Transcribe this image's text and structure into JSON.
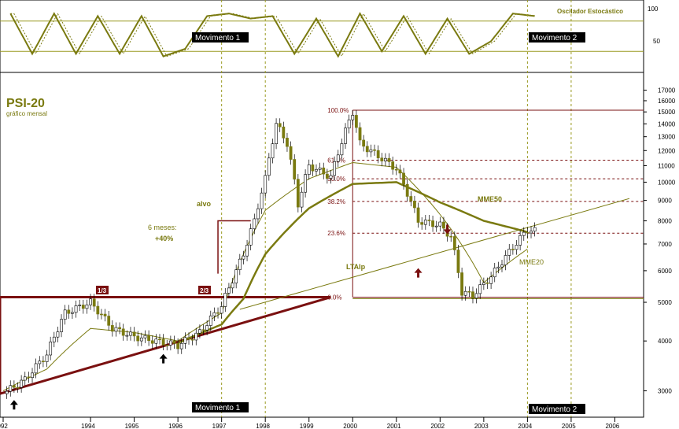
{
  "chart": {
    "title": "PSI-20",
    "subtitle": "gráfico mensal",
    "oscillator_label": "Oscilador Estocástico",
    "oscillator_ticks": [
      100,
      50
    ],
    "movements": [
      "Movimento 1",
      "Movimento 2"
    ],
    "fib_levels": [
      {
        "label": "100.0%",
        "value": 15150
      },
      {
        "label": "61.8%",
        "value": 11350
      },
      {
        "label": "50.0%",
        "value": 10200
      },
      {
        "label": "38.2%",
        "value": 8950
      },
      {
        "label": "23.6%",
        "value": 7450
      },
      {
        "label": "0.0%",
        "value": 5150
      }
    ],
    "annotations": {
      "alvo": "alvo",
      "six_months": "6 meses:",
      "gain": "+40%",
      "third1": "1/3",
      "third2": "2/3",
      "ltalp": "LTAlp",
      "mme50": "MME50",
      "mme20": "MME20"
    },
    "colors": {
      "price": "#7a7a10",
      "pattern": "#7a1010",
      "axis": "#000000",
      "up_arrow": "#000000",
      "red_arrow": "#7a1010"
    }
  },
  "chart_data": {
    "type": "line",
    "yscale": "log",
    "xlim": [
      "1992-01",
      "2006-07"
    ],
    "ylim": [
      2600,
      18500
    ],
    "x_ticks": [
      "1992",
      "1994",
      "1995",
      "1996",
      "1997",
      "1998",
      "1999",
      "2000",
      "2001",
      "2002",
      "2003",
      "2004",
      "2005",
      "2006"
    ],
    "y_ticks": [
      3000,
      4000,
      5000,
      6000,
      7000,
      8000,
      9000,
      10000,
      11000,
      12000,
      13000,
      14000,
      15000,
      16000,
      17000
    ],
    "series": [
      {
        "name": "PSI-20",
        "x": [
          "1992-01",
          "1992-07",
          "1993-01",
          "1993-06",
          "1994-01",
          "1994-07",
          "1995-01",
          "1995-07",
          "1996-01",
          "1996-07",
          "1997-01",
          "1997-04",
          "1997-07",
          "1997-10",
          "1998-01",
          "1998-04",
          "1998-07",
          "1998-10",
          "1999-01",
          "1999-07",
          "2000-01",
          "2000-03",
          "2000-07",
          "2001-01",
          "2001-07",
          "2002-01",
          "2002-04",
          "2002-07",
          "2002-10",
          "2003-03",
          "2003-07",
          "2004-01",
          "2004-03"
        ],
        "values": [
          2950,
          3200,
          3700,
          4700,
          5000,
          4300,
          4100,
          4000,
          3900,
          4200,
          4900,
          5700,
          6600,
          8000,
          10200,
          14000,
          12500,
          8800,
          11000,
          10300,
          15000,
          12500,
          11800,
          10800,
          8000,
          7800,
          7300,
          5300,
          5200,
          5800,
          6500,
          7600,
          7550
        ]
      },
      {
        "name": "MME20",
        "x": [
          "1992-01",
          "1993-01",
          "1994-01",
          "1995-01",
          "1996-01",
          "1997-01",
          "1998-01",
          "1999-01",
          "2000-01",
          "2001-01",
          "2002-01",
          "2003-01",
          "2004-01"
        ],
        "values": [
          3000,
          3400,
          4300,
          4200,
          4000,
          4700,
          8500,
          10200,
          11200,
          10900,
          8300,
          5600,
          6800
        ]
      },
      {
        "name": "MME50",
        "x": [
          "1996-01",
          "1997-01",
          "1997-07",
          "1998-01",
          "1999-01",
          "2000-01",
          "2001-01",
          "2002-01",
          "2003-01",
          "2004-01"
        ],
        "values": [
          3950,
          4400,
          5100,
          6600,
          8600,
          9900,
          10000,
          8900,
          8000,
          7500
        ]
      }
    ],
    "stochastic": {
      "x": [
        "1992-03",
        "1992-09",
        "1993-03",
        "1993-09",
        "1994-03",
        "1994-09",
        "1995-03",
        "1995-09",
        "1996-03",
        "1996-09",
        "1997-03",
        "1997-09",
        "1998-03",
        "1998-09",
        "1999-03",
        "1999-09",
        "2000-03",
        "2000-09",
        "2001-03",
        "2001-09",
        "2002-03",
        "2002-09",
        "2003-03",
        "2003-09",
        "2004-03"
      ],
      "values": [
        95,
        15,
        95,
        15,
        90,
        15,
        90,
        10,
        25,
        90,
        95,
        85,
        90,
        15,
        85,
        10,
        95,
        20,
        90,
        15,
        85,
        15,
        40,
        95,
        90
      ]
    }
  }
}
